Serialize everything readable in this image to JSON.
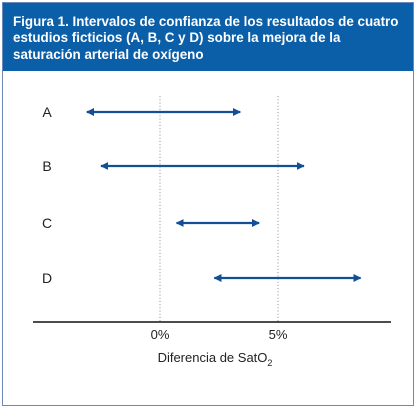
{
  "chart_data": {
    "type": "interval",
    "title": "Figura 1. Intervalos de confianza de los resultados de cuatro estudios ficticios (A, B, C y D) sobre la mejora de la saturación arterial de oxígeno",
    "xlabel": {
      "prefix": "Diferencia de SatO",
      "subscript": "2"
    },
    "xlim": [
      -6.0,
      10.0
    ],
    "ticks": [
      {
        "value": 0,
        "label": "0%"
      },
      {
        "value": 5,
        "label": "5%"
      }
    ],
    "categories": [
      "A",
      "B",
      "C",
      "D"
    ],
    "intervals": [
      {
        "name": "A",
        "low": -3.1,
        "high": 3.4
      },
      {
        "name": "B",
        "low": -2.5,
        "high": 6.1
      },
      {
        "name": "C",
        "low": 0.7,
        "high": 4.2
      },
      {
        "name": "D",
        "low": 2.3,
        "high": 8.5
      }
    ],
    "reference_lines": [
      0,
      5
    ],
    "colors": {
      "interval": "#124f96",
      "header": "#0b5fa8",
      "axis": "#111111",
      "reference": "#9a9a9a"
    }
  }
}
